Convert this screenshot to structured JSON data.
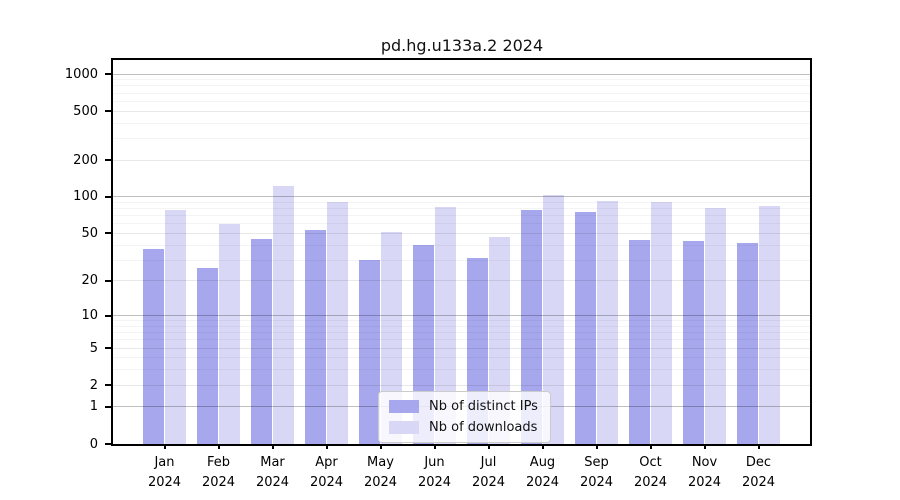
{
  "title": "pd.hg.u133a.2 2024",
  "chart_data": {
    "type": "bar",
    "title": "pd.hg.u133a.2 2024",
    "categories": [
      "Jan",
      "Feb",
      "Mar",
      "Apr",
      "May",
      "Jun",
      "Jul",
      "Aug",
      "Sep",
      "Oct",
      "Nov",
      "Dec"
    ],
    "year_label": "2024",
    "series": [
      {
        "name": "Nb of distinct IPs",
        "color": "#a7a7ee",
        "values": [
          37,
          26,
          45,
          53,
          30,
          40,
          31,
          78,
          75,
          44,
          43,
          42
        ]
      },
      {
        "name": "Nb of downloads",
        "color": "#d8d8f6",
        "values": [
          78,
          60,
          122,
          91,
          51,
          82,
          47,
          104,
          93,
          91,
          81,
          84
        ]
      }
    ],
    "yscale": "log1p",
    "ylim": [
      0,
      1300
    ],
    "ytick_labels": [
      "0",
      "1",
      "2",
      "5",
      "10",
      "20",
      "50",
      "100",
      "200",
      "500",
      "1000"
    ],
    "ytick_values": [
      0,
      1,
      2,
      5,
      10,
      20,
      50,
      100,
      200,
      500,
      1000
    ],
    "grid": true,
    "legend_position": "lower center",
    "colors": {
      "grid_major": "rgba(0,0,0,0.25)",
      "grid_minor_labeled": "rgba(0,0,0,0.09)",
      "grid_minor": "rgba(0,0,0,0.045)",
      "axis": "#000000"
    }
  }
}
